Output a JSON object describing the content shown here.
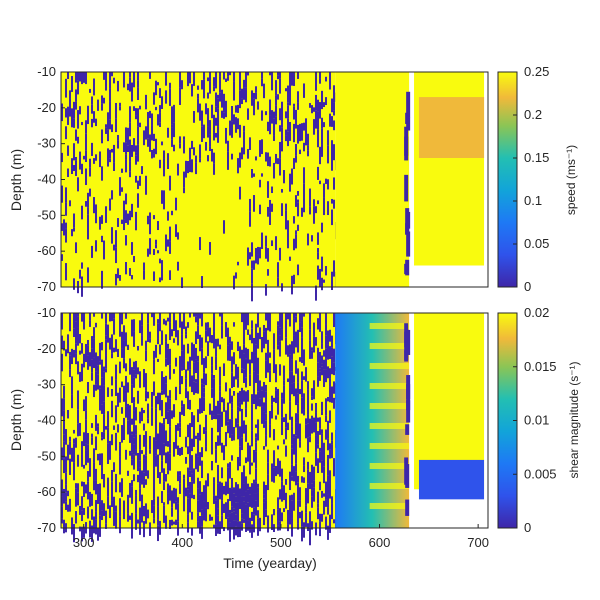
{
  "colors": {
    "low": "#3e26a8",
    "mid": "#12bee0",
    "high": "#f9fb0e",
    "axis": "#262626",
    "background": "#ffffff"
  },
  "chart_data": [
    {
      "type": "heatmap",
      "panel": "top",
      "title": "",
      "xlabel": "",
      "ylabel": "Depth (m)",
      "xlim": [
        277,
        710
      ],
      "ylim": [
        -70,
        -10
      ],
      "x_ticks": [],
      "y_ticks": [
        "-10",
        "-20",
        "-30",
        "-40",
        "-50",
        "-60",
        "-70"
      ],
      "y_tick_values": [
        -10,
        -20,
        -30,
        -40,
        -50,
        -60,
        -70
      ],
      "colorbar": {
        "label": "speed (ms⁻¹)",
        "range": [
          0,
          0.25
        ],
        "ticks": [
          "0.25",
          "0.2",
          "0.15",
          "0.1",
          "0.05",
          "0"
        ],
        "tick_values": [
          0.25,
          0.2,
          0.15,
          0.1,
          0.05,
          0
        ]
      }
    },
    {
      "type": "heatmap",
      "panel": "bottom",
      "title": "",
      "xlabel": "Time (yearday)",
      "ylabel": "Depth (m)",
      "xlim": [
        277,
        710
      ],
      "ylim": [
        -70,
        -10
      ],
      "x_ticks": [
        "300",
        "400",
        "500",
        "600",
        "700"
      ],
      "x_tick_values": [
        300,
        400,
        500,
        600,
        700
      ],
      "y_ticks": [
        "-10",
        "-20",
        "-30",
        "-40",
        "-50",
        "-60",
        "-70"
      ],
      "y_tick_values": [
        -10,
        -20,
        -30,
        -40,
        -50,
        -60,
        -70
      ],
      "colorbar": {
        "label": "shear magnitude (s⁻¹)",
        "range": [
          0,
          0.02
        ],
        "ticks": [
          "0.02",
          "0.015",
          "0.01",
          "0.005",
          "0"
        ],
        "tick_values": [
          0.02,
          0.015,
          0.01,
          0.005,
          0
        ]
      }
    }
  ]
}
